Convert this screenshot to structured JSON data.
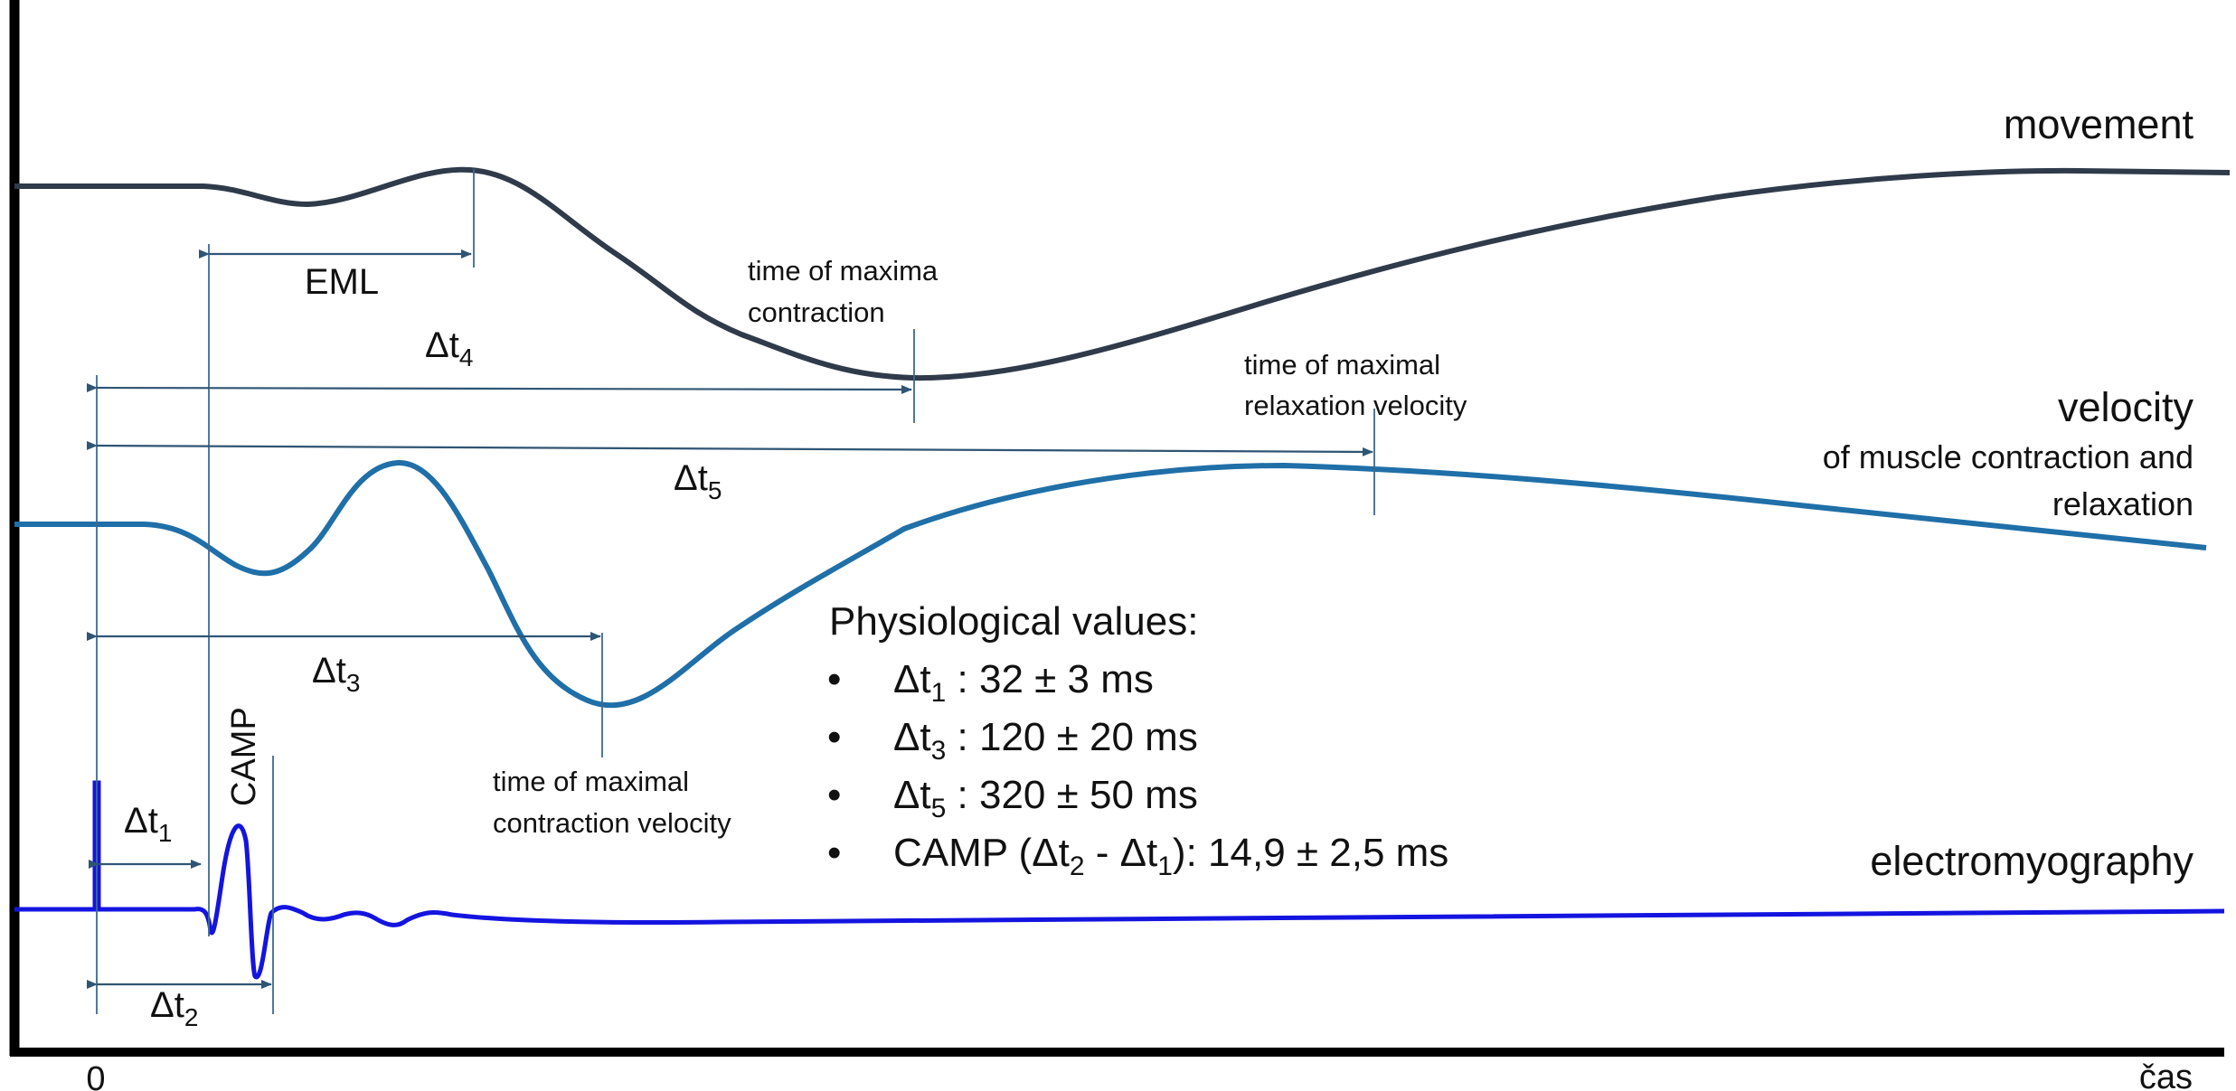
{
  "traces": {
    "movement": {
      "label": "movement",
      "color": "#2f3a4a"
    },
    "velocity": {
      "label": "velocity",
      "sublabel_1": "of muscle contraction and",
      "sublabel_2": "relaxation",
      "color": "#1f6fa8"
    },
    "electromyography": {
      "label": "electromyography",
      "color": "#1414e0"
    }
  },
  "axis": {
    "origin_label": "0",
    "time_label": "čas"
  },
  "annotations": {
    "eml": "EML",
    "camp": "CAMP",
    "max_contraction_1": "time of maxima",
    "max_contraction_2": "contraction",
    "max_relax_vel_1": "time of maximal",
    "max_relax_vel_2": "relaxation velocity",
    "max_contr_vel_1": "time of maximal",
    "max_contr_vel_2": "contraction velocity"
  },
  "intervals": {
    "dt1": {
      "symbol": "Δt",
      "sub": "1"
    },
    "dt2": {
      "symbol": "Δt",
      "sub": "2"
    },
    "dt3": {
      "symbol": "Δt",
      "sub": "3"
    },
    "dt4": {
      "symbol": "Δt",
      "sub": "4"
    },
    "dt5": {
      "symbol": "Δt",
      "sub": "5"
    }
  },
  "physiological": {
    "title": "Physiological values:",
    "bullet": "•",
    "items": [
      {
        "symbol": "Δt",
        "sub": "1",
        "value": " : 32 ± 3 ms"
      },
      {
        "symbol": "Δt",
        "sub": "3",
        "value": " : 120 ± 20 ms"
      },
      {
        "symbol": "Δt",
        "sub": "5",
        "value": " : 320 ± 50 ms"
      }
    ],
    "camp_item": {
      "prefix": "CAMP (Δt",
      "sub_a": "2",
      "middle": " - Δt",
      "sub_b": "1",
      "suffix": "): 14,9 ± 2,5 ms"
    }
  }
}
